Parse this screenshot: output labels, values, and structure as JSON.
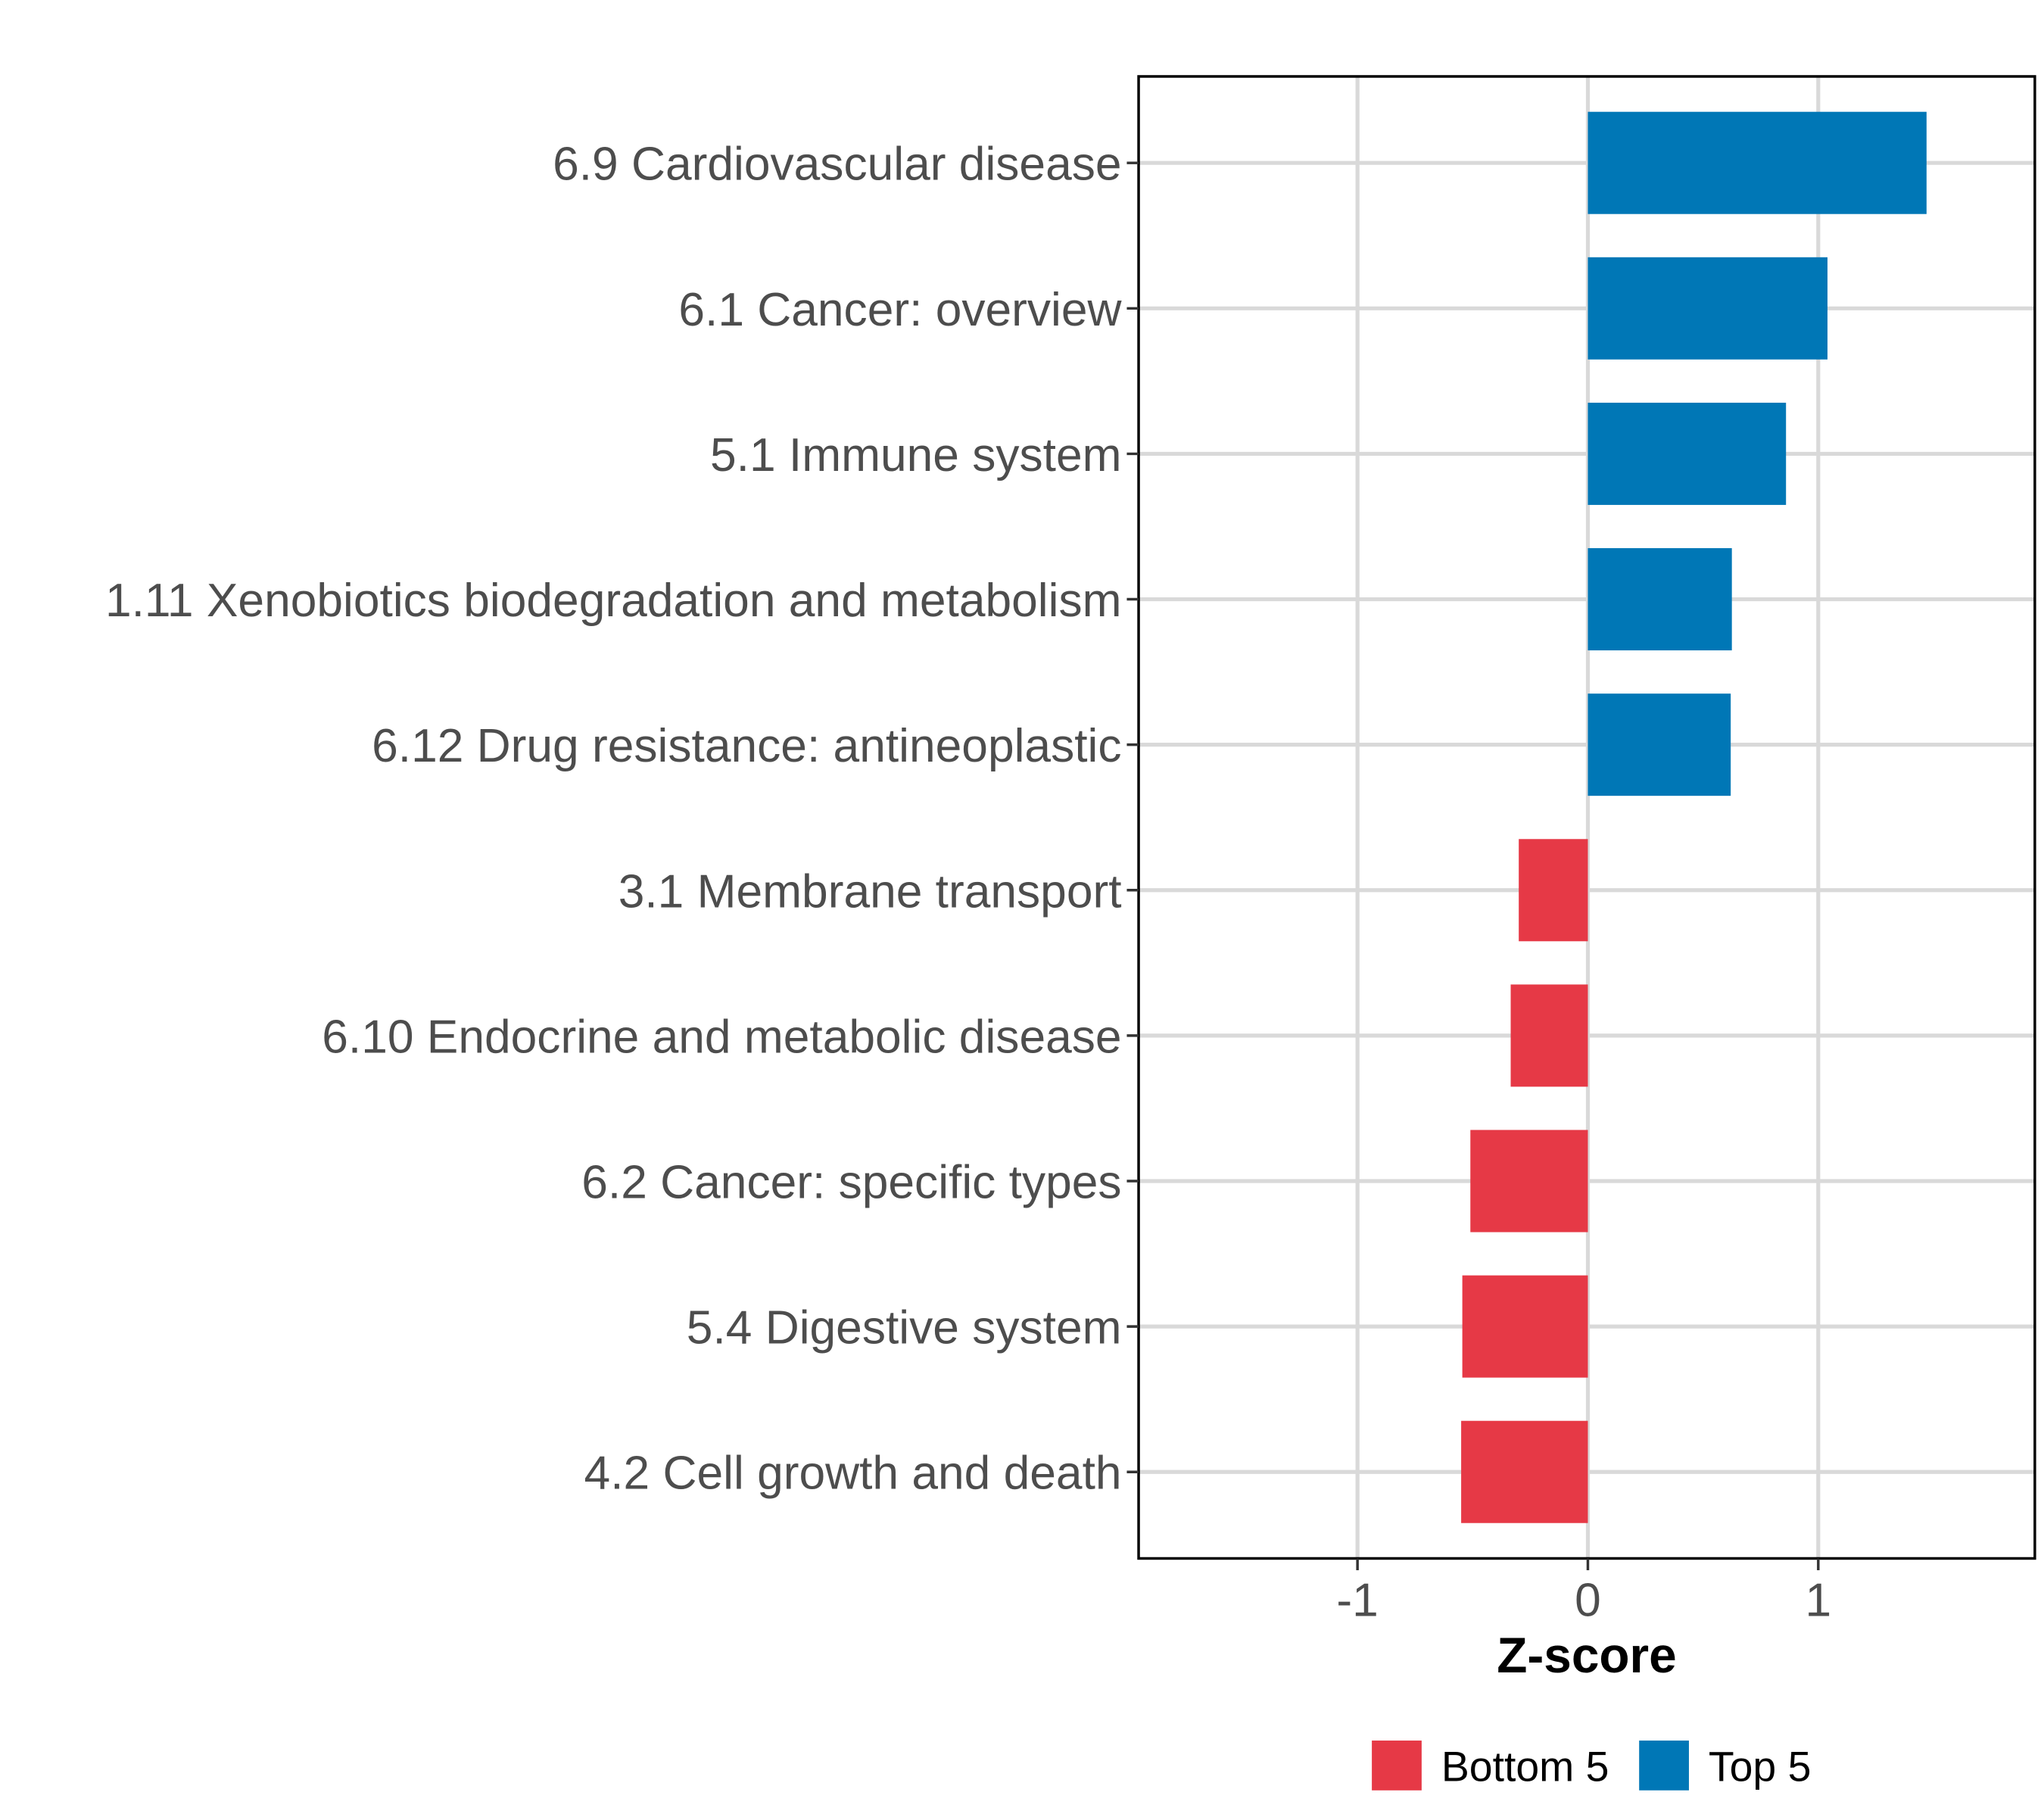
{
  "chart_data": {
    "type": "bar",
    "orientation": "horizontal",
    "title": "",
    "xlabel": "Z-score",
    "ylabel": "",
    "xlim": [
      -1.95,
      1.94
    ],
    "xticks": [
      -1,
      0,
      1
    ],
    "xtick_labels": [
      "-1",
      "0",
      "1"
    ],
    "grid": true,
    "legend_position": "bottom",
    "categories": [
      "6.9 Cardiovascular disease",
      "6.1 Cancer: overview",
      "5.1 Immune system",
      "1.11 Xenobiotics biodegradation and metabolism",
      "6.12 Drug resistance: antineoplastic",
      "3.1 Membrane transport",
      "6.10 Endocrine and metabolic disease",
      "6.2 Cancer: specific types",
      "5.4 Digestive system",
      "4.2 Cell growth and death"
    ],
    "values": [
      1.47,
      1.04,
      0.86,
      0.625,
      0.62,
      -0.3,
      -0.335,
      -0.51,
      -0.545,
      -0.55
    ],
    "groups": [
      "Top 5",
      "Top 5",
      "Top 5",
      "Top 5",
      "Top 5",
      "Bottom 5",
      "Bottom 5",
      "Bottom 5",
      "Bottom 5",
      "Bottom 5"
    ],
    "legend": [
      {
        "label": "Bottom 5",
        "color": "#e63946"
      },
      {
        "label": "Top 5",
        "color": "#0077b6"
      }
    ]
  }
}
